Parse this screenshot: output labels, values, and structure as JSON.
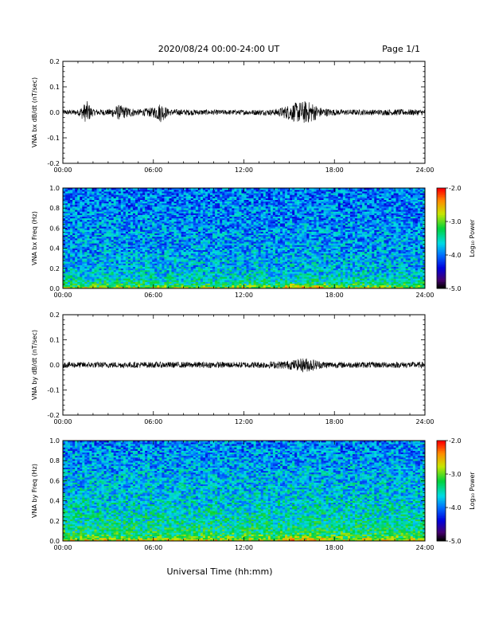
{
  "header": {
    "title": "2020/08/24  00:00-24:00 UT",
    "page": "Page 1/1"
  },
  "x_axis_title": "Universal Time (hh:mm)",
  "chart_data": [
    {
      "type": "line",
      "ylabel": "VNA bx dB/dt (nT/sec)",
      "xlim": [
        0,
        24
      ],
      "ylim": [
        -0.2,
        0.2
      ],
      "xticks": [
        "00:00",
        "06:00",
        "12:00",
        "18:00",
        "24:00"
      ],
      "yticks": [
        "-0.2",
        "-0.1",
        "0.0",
        "0.1",
        "0.2"
      ],
      "envelope_hours": [
        0,
        1,
        1.6,
        2,
        3,
        3.7,
        4,
        5,
        6,
        6.5,
        7,
        8,
        9,
        10,
        11,
        12,
        13,
        14,
        14.5,
        15,
        15.5,
        16,
        16.5,
        17,
        18,
        19,
        20,
        21,
        22,
        23,
        24
      ],
      "envelope_amplitude": [
        0.01,
        0.011,
        0.045,
        0.013,
        0.012,
        0.03,
        0.025,
        0.012,
        0.02,
        0.04,
        0.013,
        0.012,
        0.011,
        0.01,
        0.01,
        0.01,
        0.011,
        0.012,
        0.02,
        0.03,
        0.04,
        0.045,
        0.04,
        0.02,
        0.012,
        0.011,
        0.011,
        0.011,
        0.012,
        0.012,
        0.011
      ]
    },
    {
      "type": "heatmap",
      "ylabel": "VNA bx Freq (Hz)",
      "xlim": [
        0,
        24
      ],
      "ylim": [
        0,
        1.0
      ],
      "xticks": [
        "00:00",
        "06:00",
        "12:00",
        "18:00",
        "24:00"
      ],
      "yticks": [
        "0.0",
        "0.2",
        "0.4",
        "0.6",
        "0.8",
        "1.0"
      ],
      "colorbar": {
        "title": "Log₁₀ Power",
        "ticks": [
          "-2.0",
          "-3.0",
          "-4.0",
          "-5.0"
        ],
        "range": [
          -5.0,
          -2.0
        ]
      },
      "mean_log_power_by_freq": {
        "freq_hz": [
          0.0,
          0.02,
          0.05,
          0.1,
          0.2,
          0.4,
          0.6,
          0.8,
          1.0
        ],
        "log_power": [
          -2.7,
          -3.1,
          -3.4,
          -3.6,
          -3.75,
          -3.85,
          -3.9,
          -3.95,
          -4.0
        ]
      },
      "enhanced_hours": [
        14.5,
        17.5
      ]
    },
    {
      "type": "line",
      "ylabel": "VNA by dB/dt (nT/sec)",
      "xlim": [
        0,
        24
      ],
      "ylim": [
        -0.2,
        0.2
      ],
      "xticks": [
        "00:00",
        "06:00",
        "12:00",
        "18:00",
        "24:00"
      ],
      "yticks": [
        "-0.2",
        "-0.1",
        "0.0",
        "0.1",
        "0.2"
      ],
      "envelope_hours": [
        0,
        2,
        4,
        6,
        8,
        10,
        12,
        14,
        15,
        15.5,
        16,
        16.5,
        17,
        18,
        20,
        22,
        24
      ],
      "envelope_amplitude": [
        0.012,
        0.012,
        0.012,
        0.012,
        0.012,
        0.012,
        0.012,
        0.014,
        0.018,
        0.022,
        0.03,
        0.025,
        0.016,
        0.012,
        0.012,
        0.012,
        0.012
      ]
    },
    {
      "type": "heatmap",
      "ylabel": "VNA by Freq (Hz)",
      "xlim": [
        0,
        24
      ],
      "ylim": [
        0,
        1.0
      ],
      "xticks": [
        "00:00",
        "06:00",
        "12:00",
        "18:00",
        "24:00"
      ],
      "yticks": [
        "0.0",
        "0.2",
        "0.4",
        "0.6",
        "0.8",
        "1.0"
      ],
      "colorbar": {
        "title": "Log₁₀ Power",
        "ticks": [
          "-2.0",
          "-3.0",
          "-4.0",
          "-5.0"
        ],
        "range": [
          -5.0,
          -2.0
        ]
      },
      "mean_log_power_by_freq": {
        "freq_hz": [
          0.0,
          0.02,
          0.05,
          0.1,
          0.2,
          0.4,
          0.6,
          0.8,
          1.0
        ],
        "log_power": [
          -2.6,
          -2.9,
          -3.2,
          -3.35,
          -3.5,
          -3.65,
          -3.75,
          -3.85,
          -3.95
        ]
      },
      "enhanced_hours": [
        14.5,
        17.5
      ]
    }
  ]
}
